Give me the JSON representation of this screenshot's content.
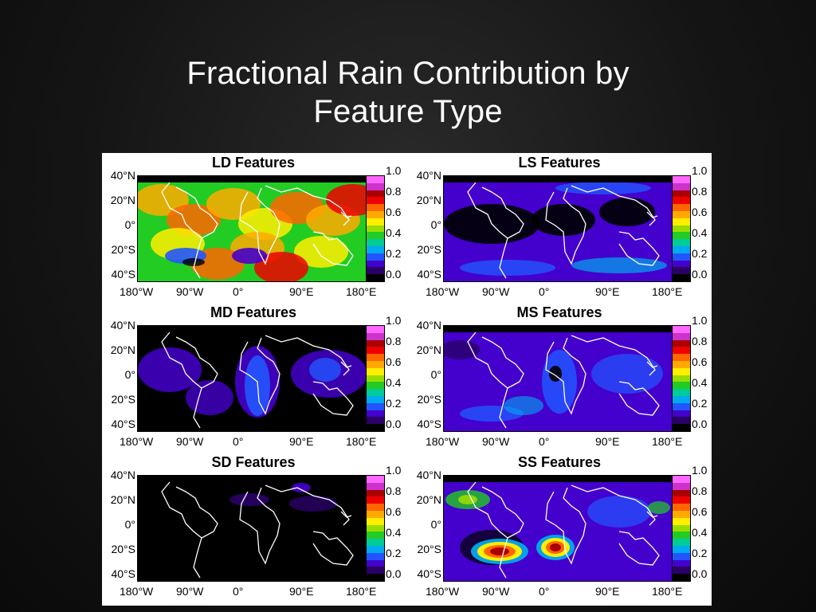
{
  "slide": {
    "title_line1": "Fractional Rain Contribution by",
    "title_line2": "Feature Type"
  },
  "lat_labels": [
    "40°N",
    "20°N",
    "0°",
    "20°S",
    "40°S"
  ],
  "lon_labels": [
    "180°W",
    "90°W",
    "0°",
    "90°E",
    "180°E"
  ],
  "colorbar": {
    "ticks": [
      "1.0",
      "0.8",
      "0.6",
      "0.4",
      "0.2",
      "0.0"
    ]
  },
  "panels": [
    {
      "id": "ld",
      "title": "LD Features",
      "mean_fraction": 0.6
    },
    {
      "id": "ls",
      "title": "LS Features",
      "mean_fraction": 0.15
    },
    {
      "id": "md",
      "title": "MD Features",
      "mean_fraction": 0.15
    },
    {
      "id": "ms",
      "title": "MS Features",
      "mean_fraction": 0.2
    },
    {
      "id": "sd",
      "title": "SD Features",
      "mean_fraction": 0.02
    },
    {
      "id": "ss",
      "title": "SS Features",
      "mean_fraction": 0.2
    }
  ]
}
